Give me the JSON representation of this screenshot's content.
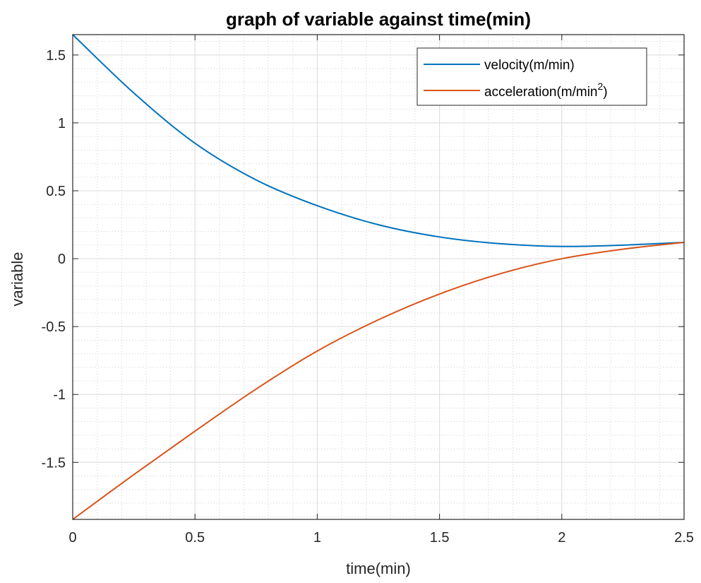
{
  "chart_data": {
    "type": "line",
    "title": "graph of variable against time(min)",
    "xlabel": "time(min)",
    "ylabel": "variable",
    "xlim": [
      0,
      2.5
    ],
    "ylim": [
      -1.92,
      1.65
    ],
    "xticks": [
      0,
      0.5,
      1,
      1.5,
      2,
      2.5
    ],
    "xtick_labels": [
      "0",
      "0.5",
      "1",
      "1.5",
      "2",
      "2.5"
    ],
    "yticks": [
      -1.5,
      -1,
      -0.5,
      0,
      0.5,
      1,
      1.5
    ],
    "ytick_labels": [
      "-1.5",
      "-1",
      "-0.5",
      "0",
      "0.5",
      "1",
      "1.5"
    ],
    "grid": "major and minor",
    "legend_position": "top-right",
    "series": [
      {
        "name": "velocity(m/min)",
        "color": "#0072BD",
        "x": [
          0,
          0.25,
          0.5,
          0.75,
          1,
          1.25,
          1.5,
          1.75,
          2,
          2.25,
          2.5
        ],
        "values": [
          1.65,
          1.22,
          0.85,
          0.58,
          0.39,
          0.25,
          0.16,
          0.11,
          0.09,
          0.1,
          0.12
        ]
      },
      {
        "name": "acceleration(m/min",
        "name_superscript": "2",
        "name_suffix": ")",
        "color": "#D95319",
        "x": [
          0,
          0.25,
          0.5,
          0.75,
          1,
          1.25,
          1.5,
          1.75,
          2,
          2.25,
          2.5
        ],
        "values": [
          -1.92,
          -1.59,
          -1.27,
          -0.96,
          -0.68,
          -0.45,
          -0.26,
          -0.11,
          0.0,
          0.07,
          0.12
        ]
      }
    ]
  }
}
